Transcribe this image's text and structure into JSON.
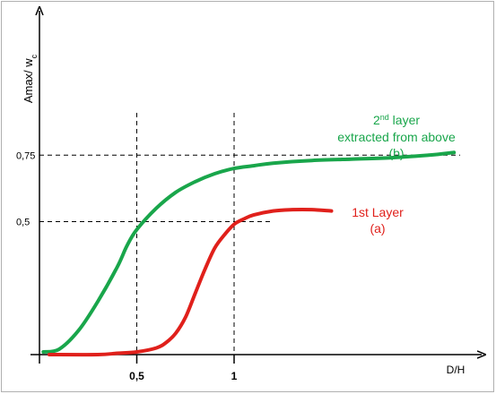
{
  "chart_data": {
    "type": "line",
    "ylabel": "Amax/ w",
    "ylabel_subscript": "c",
    "xlabel": "D/H",
    "x_ticks": [
      {
        "value": 0.5,
        "label": "0,5"
      },
      {
        "value": 1,
        "label": "1"
      }
    ],
    "y_ticks": [
      {
        "value": 0.5,
        "label": "0,5"
      },
      {
        "value": 0.75,
        "label": "0,75"
      }
    ],
    "xlim": [
      0,
      2.15
    ],
    "ylim": [
      0,
      1.0
    ],
    "grid": false,
    "reference_lines": [
      {
        "axis": "x",
        "value": 0.5
      },
      {
        "axis": "x",
        "value": 1
      },
      {
        "axis": "y",
        "value": 0.5
      },
      {
        "axis": "y",
        "value": 0.75
      }
    ],
    "colors": {
      "green": "#19a64b",
      "red": "#e0201b",
      "axis": "#000000",
      "guide": "#000000"
    },
    "series": [
      {
        "name": "2nd layer extracted from above (b)",
        "color": "#19a64b",
        "x": [
          0.02,
          0.1,
          0.2,
          0.3,
          0.4,
          0.45,
          0.5,
          0.6,
          0.7,
          0.8,
          0.9,
          1.0,
          1.1,
          1.2,
          1.4,
          1.6,
          1.8,
          2.0,
          2.13
        ],
        "y": [
          0.01,
          0.02,
          0.09,
          0.2,
          0.33,
          0.41,
          0.47,
          0.55,
          0.61,
          0.65,
          0.68,
          0.7,
          0.71,
          0.72,
          0.73,
          0.735,
          0.74,
          0.75,
          0.76
        ]
      },
      {
        "name": "1st Layer (a)",
        "color": "#e0201b",
        "x": [
          0.05,
          0.3,
          0.4,
          0.5,
          0.6,
          0.65,
          0.7,
          0.75,
          0.8,
          0.85,
          0.9,
          0.95,
          1.0,
          1.05,
          1.1,
          1.2,
          1.3,
          1.4,
          1.5
        ],
        "y": [
          0.0,
          0.0,
          0.005,
          0.01,
          0.025,
          0.045,
          0.08,
          0.14,
          0.23,
          0.32,
          0.4,
          0.45,
          0.49,
          0.51,
          0.525,
          0.54,
          0.545,
          0.545,
          0.54
        ]
      }
    ],
    "annotations": {
      "green": {
        "sup_prefix": "2",
        "sup": "nd",
        "line1_rest": " layer",
        "line2": "extracted from above",
        "line3": "(b)"
      },
      "red": {
        "line1": "1st Layer",
        "line2": "(a)"
      }
    }
  }
}
